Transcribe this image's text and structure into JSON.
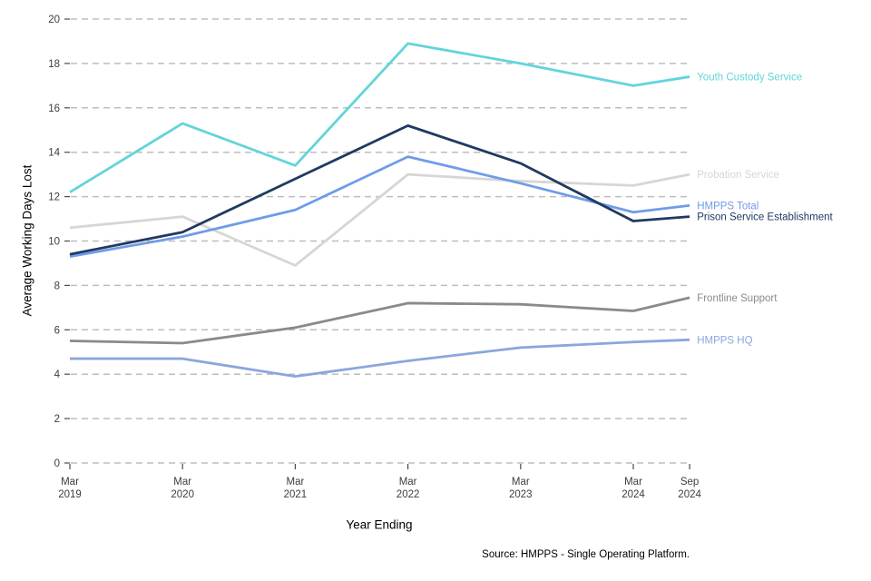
{
  "chart_data": {
    "type": "line",
    "title": "",
    "xlabel": "Year Ending",
    "ylabel": "Average Working Days Lost",
    "source_note": "Source: HMPPS - Single Operating Platform.",
    "x_axis": {
      "categories": [
        "Mar 2019",
        "Mar 2020",
        "Mar 2021",
        "Mar 2022",
        "Mar 2023",
        "Mar 2024",
        "Sep 2024"
      ],
      "offsets_years": [
        0,
        1,
        2,
        3,
        4,
        5,
        5.5
      ]
    },
    "y_axis": {
      "min": 0,
      "max": 20,
      "tick_step": 2,
      "ticks": [
        0,
        2,
        4,
        6,
        8,
        10,
        12,
        14,
        16,
        18,
        20
      ]
    },
    "grid": "horizontal-dashed",
    "legend_position": "line-end-labels-right",
    "series": [
      {
        "name": "Probation Service",
        "color": "#d6d6d6",
        "values": [
          10.6,
          11.1,
          8.9,
          13.0,
          12.7,
          12.5,
          13.0
        ]
      },
      {
        "name": "HMPPS HQ",
        "color": "#8aa6dc",
        "values": [
          4.7,
          4.7,
          3.9,
          4.6,
          5.2,
          5.45,
          5.55
        ]
      },
      {
        "name": "Frontline Support",
        "color": "#8a8a8a",
        "values": [
          5.5,
          5.4,
          6.1,
          7.2,
          7.15,
          6.85,
          7.45
        ]
      },
      {
        "name": "HMPPS Total",
        "color": "#6f9ce8",
        "values": [
          9.3,
          10.2,
          11.4,
          13.8,
          12.6,
          11.3,
          11.6
        ]
      },
      {
        "name": "Prison Service Establishment",
        "color": "#203a61",
        "values": [
          9.4,
          10.4,
          12.8,
          15.2,
          13.5,
          10.9,
          11.1
        ]
      },
      {
        "name": "Youth Custody Service",
        "color": "#63d4da",
        "values": [
          12.2,
          15.3,
          13.4,
          18.9,
          18.0,
          17.0,
          17.4
        ]
      }
    ]
  },
  "colors": {
    "background": "#ffffff",
    "gridline": "#bdbdbd",
    "tick_mark": "#4a4a4a",
    "tick_label": "#3d3d3d",
    "axis_title": "#000000",
    "source_text": "#000000"
  }
}
